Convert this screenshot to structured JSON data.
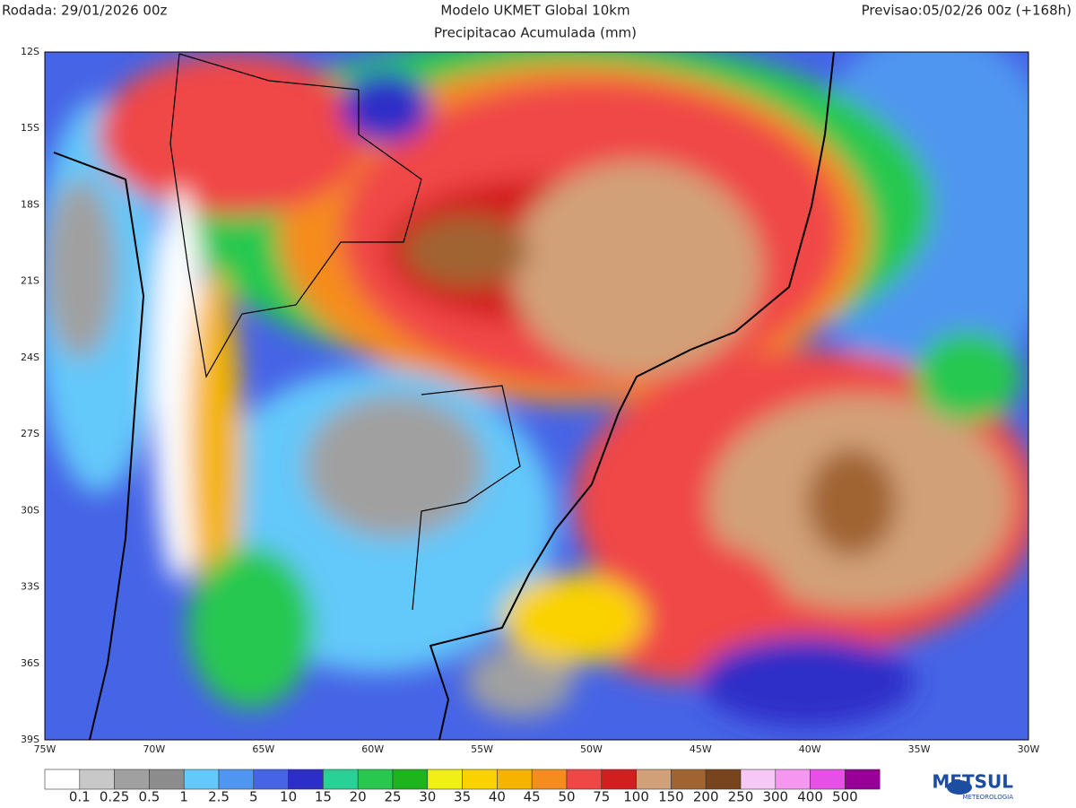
{
  "header": {
    "run": "Rodada: 29/01/2026 00z",
    "model": "Modelo UKMET Global 10km",
    "field": "Precipitacao Acumulada (mm)",
    "forecast": "Previsao:05/02/26 00z (+168h)"
  },
  "map": {
    "lat_labels": [
      "12S",
      "15S",
      "18S",
      "21S",
      "24S",
      "27S",
      "30S",
      "33S",
      "36S",
      "39S"
    ],
    "lon_labels": [
      "75W",
      "70W",
      "65W",
      "60W",
      "55W",
      "50W",
      "45W",
      "40W",
      "35W",
      "30W"
    ]
  },
  "legend": {
    "labels": [
      "0.1",
      "0.25",
      "0.5",
      "1",
      "2.5",
      "5",
      "10",
      "15",
      "20",
      "25",
      "30",
      "35",
      "40",
      "45",
      "50",
      "75",
      "100",
      "150",
      "200",
      "250",
      "300",
      "400",
      "500"
    ],
    "colors": [
      "#ffffff",
      "#c8c8c8",
      "#a0a0a0",
      "#8c8c8c",
      "#64c8fa",
      "#5096f0",
      "#4664e6",
      "#2d2dc8",
      "#28d296",
      "#28c850",
      "#1eb41e",
      "#f0f014",
      "#fad200",
      "#f5b400",
      "#f58c1e",
      "#f04646",
      "#d21e1e",
      "#d2a078",
      "#a06432",
      "#78441e",
      "#f5c8f5",
      "#f596f0",
      "#e650e6",
      "#960096"
    ]
  },
  "logo": {
    "name": "METSUL",
    "tagline": "METEOROLOGIA"
  }
}
